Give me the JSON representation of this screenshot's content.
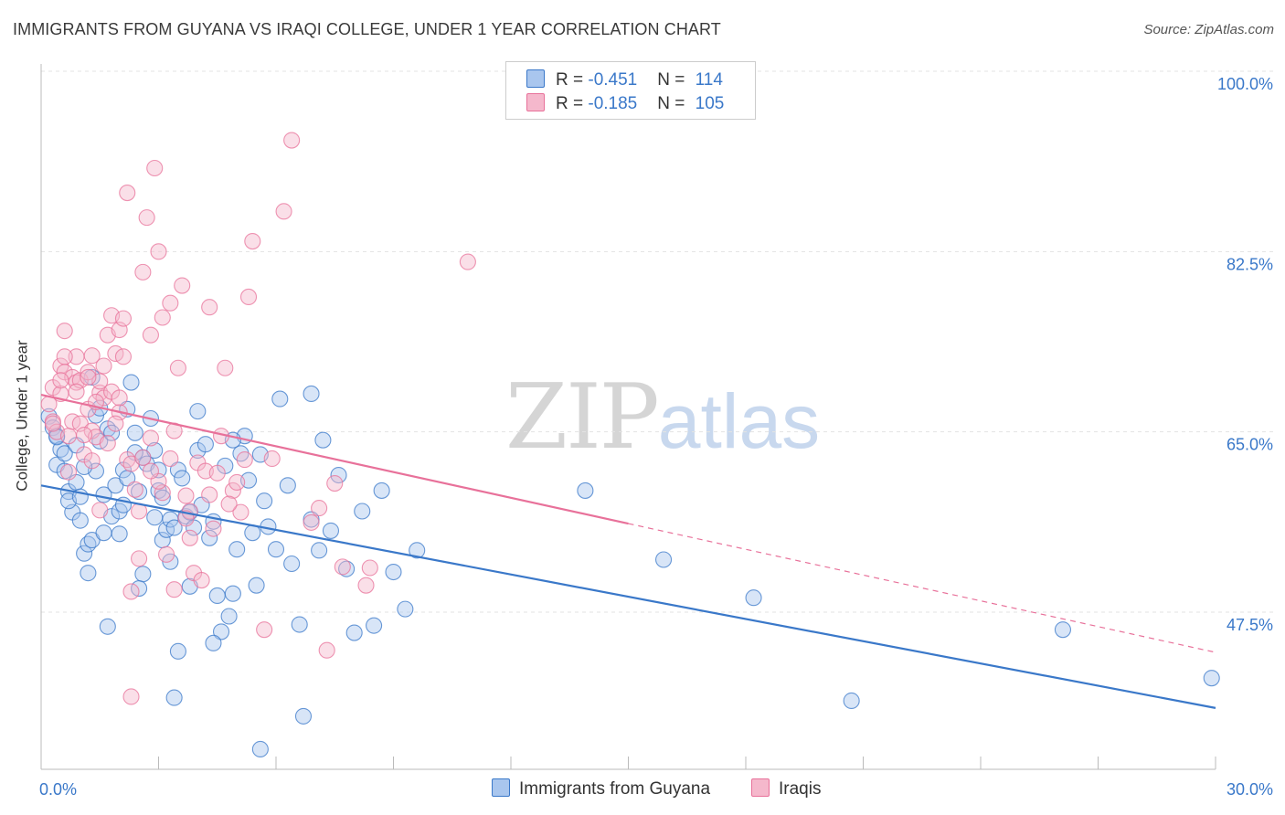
{
  "title": "IMMIGRANTS FROM GUYANA VS IRAQI COLLEGE, UNDER 1 YEAR CORRELATION CHART",
  "source": "Source: ZipAtlas.com",
  "watermark": {
    "zip": "ZIP",
    "atlas": "atlas"
  },
  "legend": {
    "rows": [
      {
        "r_label": "R = ",
        "r_value": "-0.451",
        "n_label": "N = ",
        "n_value": "114"
      },
      {
        "r_label": "R = ",
        "r_value": "-0.185",
        "n_label": "N = ",
        "n_value": "105"
      }
    ]
  },
  "bottom_legend": [
    "Immigrants from Guyana",
    "Iraqis"
  ],
  "colors": {
    "blue": "#3a78c9",
    "blue_fill": "#a9c6ee",
    "pink": "#e8719a",
    "pink_fill": "#f5b8cc",
    "grid": "#e3e3e3"
  },
  "chart_data": {
    "type": "scatter",
    "title": "IMMIGRANTS FROM GUYANA VS IRAQI COLLEGE, UNDER 1 YEAR CORRELATION CHART",
    "xlabel": "",
    "ylabel": "College, Under 1 year",
    "x_tick_labels": [
      "0.0%",
      "30.0%"
    ],
    "y_tick_labels": [
      "100.0%",
      "82.5%",
      "65.0%",
      "47.5%"
    ],
    "xlim": [
      0,
      30
    ],
    "ylim": [
      32,
      102
    ],
    "y_ticks": [
      100,
      82.5,
      65,
      47.5
    ],
    "series": [
      {
        "name": "Immigrants from Guyana",
        "color": "#3a78c9",
        "R": -0.451,
        "N": 114,
        "trend": {
          "x0": 0,
          "y0": 59.8,
          "x1": 30,
          "y1": 38.2,
          "dashed_from": null
        },
        "points": [
          [
            0.2,
            66.5
          ],
          [
            0.3,
            65.4
          ],
          [
            0.4,
            64.6
          ],
          [
            0.5,
            63.3
          ],
          [
            0.4,
            61.8
          ],
          [
            0.6,
            62.9
          ],
          [
            0.6,
            61.2
          ],
          [
            0.7,
            59.2
          ],
          [
            0.8,
            57.2
          ],
          [
            0.7,
            58.3
          ],
          [
            0.9,
            60.1
          ],
          [
            1.0,
            58.7
          ],
          [
            1.1,
            53.2
          ],
          [
            1.0,
            56.4
          ],
          [
            1.2,
            54.1
          ],
          [
            1.2,
            51.3
          ],
          [
            1.3,
            54.5
          ],
          [
            1.4,
            61.2
          ],
          [
            1.5,
            64.1
          ],
          [
            1.4,
            66.6
          ],
          [
            1.6,
            58.9
          ],
          [
            1.5,
            67.3
          ],
          [
            1.7,
            65.3
          ],
          [
            1.8,
            64.9
          ],
          [
            1.8,
            56.8
          ],
          [
            1.9,
            59.8
          ],
          [
            2.0,
            57.3
          ],
          [
            2.1,
            61.3
          ],
          [
            2.1,
            57.9
          ],
          [
            2.0,
            55.1
          ],
          [
            2.2,
            67.2
          ],
          [
            2.3,
            69.8
          ],
          [
            2.5,
            59.2
          ],
          [
            2.6,
            62.5
          ],
          [
            2.7,
            61.9
          ],
          [
            2.6,
            51.2
          ],
          [
            2.8,
            66.3
          ],
          [
            2.9,
            63.2
          ],
          [
            3.0,
            59.3
          ],
          [
            3.1,
            54.5
          ],
          [
            3.2,
            55.5
          ],
          [
            3.3,
            56.5
          ],
          [
            3.3,
            52.4
          ],
          [
            3.4,
            55.7
          ],
          [
            3.5,
            61.3
          ],
          [
            3.6,
            60.5
          ],
          [
            3.7,
            56.8
          ],
          [
            3.8,
            50.0
          ],
          [
            3.9,
            55.7
          ],
          [
            4.0,
            63.2
          ],
          [
            4.0,
            67.0
          ],
          [
            4.1,
            57.9
          ],
          [
            4.3,
            54.7
          ],
          [
            4.4,
            56.3
          ],
          [
            4.5,
            49.1
          ],
          [
            4.6,
            45.6
          ],
          [
            4.7,
            61.7
          ],
          [
            4.8,
            47.1
          ],
          [
            4.9,
            49.3
          ],
          [
            5.0,
            53.6
          ],
          [
            5.1,
            62.9
          ],
          [
            5.2,
            64.6
          ],
          [
            5.3,
            60.3
          ],
          [
            5.4,
            55.2
          ],
          [
            5.5,
            50.1
          ],
          [
            5.6,
            62.8
          ],
          [
            5.7,
            58.3
          ],
          [
            5.8,
            55.8
          ],
          [
            6.0,
            53.6
          ],
          [
            6.1,
            68.2
          ],
          [
            6.3,
            59.8
          ],
          [
            6.4,
            52.2
          ],
          [
            6.6,
            46.3
          ],
          [
            6.7,
            37.4
          ],
          [
            6.9,
            56.5
          ],
          [
            7.1,
            53.5
          ],
          [
            7.2,
            64.2
          ],
          [
            7.4,
            55.4
          ],
          [
            7.6,
            60.8
          ],
          [
            7.8,
            51.7
          ],
          [
            8.0,
            45.5
          ],
          [
            8.2,
            57.3
          ],
          [
            8.5,
            46.2
          ],
          [
            8.7,
            59.3
          ],
          [
            9.0,
            51.4
          ],
          [
            9.3,
            47.8
          ],
          [
            9.6,
            53.5
          ],
          [
            4.4,
            44.5
          ],
          [
            3.4,
            39.2
          ],
          [
            3.5,
            43.7
          ],
          [
            1.7,
            46.1
          ],
          [
            4.2,
            63.8
          ],
          [
            2.5,
            49.8
          ],
          [
            5.6,
            34.2
          ],
          [
            2.4,
            63.0
          ],
          [
            2.9,
            56.7
          ],
          [
            3.8,
            57.2
          ],
          [
            1.1,
            61.6
          ],
          [
            2.2,
            60.5
          ],
          [
            1.6,
            55.2
          ],
          [
            4.9,
            64.2
          ],
          [
            3.1,
            58.6
          ],
          [
            6.9,
            68.7
          ],
          [
            1.3,
            70.3
          ],
          [
            0.9,
            63.7
          ],
          [
            0.4,
            64.5
          ],
          [
            2.4,
            64.9
          ],
          [
            3.0,
            61.3
          ],
          [
            13.9,
            59.3
          ],
          [
            15.9,
            52.6
          ],
          [
            18.2,
            48.9
          ],
          [
            26.1,
            45.8
          ],
          [
            29.9,
            41.1
          ],
          [
            20.7,
            38.9
          ]
        ]
      },
      {
        "name": "Iraqis",
        "color": "#e8719a",
        "R": -0.185,
        "N": 105,
        "trend": {
          "x0": 0,
          "y0": 68.6,
          "x1": 30,
          "y1": 43.6,
          "dashed_from": 15
        },
        "points": [
          [
            0.2,
            67.7
          ],
          [
            0.3,
            69.3
          ],
          [
            0.3,
            66.0
          ],
          [
            0.4,
            65.0
          ],
          [
            0.5,
            68.7
          ],
          [
            0.5,
            71.4
          ],
          [
            0.6,
            74.8
          ],
          [
            0.6,
            70.8
          ],
          [
            0.7,
            64.6
          ],
          [
            0.8,
            70.3
          ],
          [
            0.8,
            66.0
          ],
          [
            0.9,
            72.3
          ],
          [
            0.9,
            69.8
          ],
          [
            1.0,
            65.8
          ],
          [
            1.0,
            70.0
          ],
          [
            1.1,
            62.8
          ],
          [
            1.2,
            67.2
          ],
          [
            1.2,
            70.8
          ],
          [
            1.3,
            72.4
          ],
          [
            1.3,
            65.1
          ],
          [
            1.4,
            64.5
          ],
          [
            1.5,
            68.8
          ],
          [
            1.5,
            69.9
          ],
          [
            1.6,
            68.3
          ],
          [
            1.6,
            71.4
          ],
          [
            1.7,
            74.4
          ],
          [
            1.8,
            76.3
          ],
          [
            1.9,
            72.6
          ],
          [
            2.0,
            74.9
          ],
          [
            2.0,
            66.9
          ],
          [
            2.1,
            76.0
          ],
          [
            2.2,
            88.2
          ],
          [
            2.2,
            62.3
          ],
          [
            2.3,
            61.9
          ],
          [
            2.4,
            59.4
          ],
          [
            2.5,
            57.3
          ],
          [
            2.5,
            52.7
          ],
          [
            2.6,
            80.5
          ],
          [
            2.7,
            85.8
          ],
          [
            2.8,
            74.4
          ],
          [
            2.8,
            64.4
          ],
          [
            2.9,
            90.6
          ],
          [
            3.0,
            82.5
          ],
          [
            3.1,
            76.1
          ],
          [
            3.1,
            59.1
          ],
          [
            3.2,
            53.1
          ],
          [
            3.3,
            62.4
          ],
          [
            3.4,
            49.7
          ],
          [
            3.5,
            71.2
          ],
          [
            3.6,
            79.2
          ],
          [
            3.7,
            58.8
          ],
          [
            3.8,
            54.7
          ],
          [
            3.9,
            51.3
          ],
          [
            4.0,
            62.0
          ],
          [
            4.1,
            50.6
          ],
          [
            4.2,
            61.2
          ],
          [
            4.3,
            58.9
          ],
          [
            4.4,
            55.6
          ],
          [
            4.6,
            64.6
          ],
          [
            4.7,
            71.2
          ],
          [
            4.9,
            59.3
          ],
          [
            5.1,
            57.2
          ],
          [
            5.2,
            62.3
          ],
          [
            5.3,
            78.1
          ],
          [
            5.4,
            83.5
          ],
          [
            5.7,
            45.8
          ],
          [
            5.9,
            62.4
          ],
          [
            6.4,
            93.3
          ],
          [
            6.2,
            86.4
          ],
          [
            6.9,
            56.2
          ],
          [
            7.1,
            57.6
          ],
          [
            7.3,
            43.8
          ],
          [
            7.5,
            60.0
          ],
          [
            7.7,
            51.9
          ],
          [
            8.3,
            50.1
          ],
          [
            8.4,
            51.8
          ],
          [
            2.3,
            39.3
          ],
          [
            2.3,
            49.5
          ],
          [
            1.5,
            57.4
          ],
          [
            0.5,
            70.0
          ],
          [
            0.6,
            72.3
          ],
          [
            1.2,
            70.3
          ],
          [
            1.4,
            67.9
          ],
          [
            0.9,
            68.9
          ],
          [
            1.8,
            68.9
          ],
          [
            2.0,
            68.3
          ],
          [
            0.3,
            65.8
          ],
          [
            3.3,
            77.5
          ],
          [
            4.5,
            61.0
          ],
          [
            3.8,
            57.3
          ],
          [
            2.6,
            62.5
          ],
          [
            1.7,
            63.9
          ],
          [
            2.1,
            72.3
          ],
          [
            3.0,
            60.2
          ],
          [
            4.3,
            77.1
          ],
          [
            3.7,
            56.6
          ],
          [
            5.0,
            60.1
          ],
          [
            1.1,
            64.7
          ],
          [
            0.7,
            61.1
          ],
          [
            1.3,
            62.2
          ],
          [
            1.9,
            65.8
          ],
          [
            3.4,
            65.1
          ],
          [
            2.8,
            61.2
          ],
          [
            4.8,
            58.0
          ],
          [
            10.9,
            81.5
          ]
        ]
      }
    ]
  }
}
